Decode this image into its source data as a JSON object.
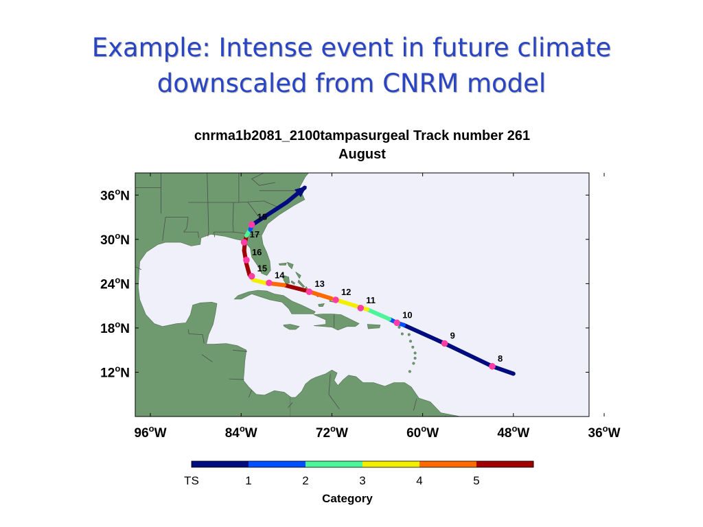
{
  "slide": {
    "title_line1": "Example: Intense event in future climate",
    "title_line2": "downscaled from CNRM model"
  },
  "plot": {
    "title_line1": "cnrma1b2081_2100tampasurgeal Track number 261",
    "title_line2": "August"
  },
  "map": {
    "lon_range": [
      -98,
      -38
    ],
    "lat_range": [
      6,
      39
    ],
    "ocean_color": "#f0f0fb",
    "land_color": "#6f9a6f",
    "lat_ticks": [
      {
        "value": 36,
        "deg": "36",
        "hemi": "N"
      },
      {
        "value": 30,
        "deg": "30",
        "hemi": "N"
      },
      {
        "value": 24,
        "deg": "24",
        "hemi": "N"
      },
      {
        "value": 18,
        "deg": "18",
        "hemi": "N"
      },
      {
        "value": 12,
        "deg": "12",
        "hemi": "N"
      }
    ],
    "lon_ticks": [
      {
        "value": -96,
        "deg": "96",
        "hemi": "W"
      },
      {
        "value": -84,
        "deg": "84",
        "hemi": "W"
      },
      {
        "value": -72,
        "deg": "72",
        "hemi": "W"
      },
      {
        "value": -60,
        "deg": "60",
        "hemi": "W"
      },
      {
        "value": -48,
        "deg": "48",
        "hemi": "W"
      },
      {
        "value": -36,
        "deg": "36",
        "hemi": "W"
      }
    ]
  },
  "track": {
    "points": [
      {
        "lon": -48.0,
        "lat": 11.8,
        "cat": 0
      },
      {
        "lon": -50.8,
        "lat": 12.8,
        "cat": 0
      },
      {
        "lon": -57.1,
        "lat": 15.9,
        "cat": 0
      },
      {
        "lon": -62.5,
        "lat": 18.4,
        "cat": 1
      },
      {
        "lon": -63.4,
        "lat": 18.7,
        "cat": 1
      },
      {
        "lon": -64.4,
        "lat": 19.2,
        "cat": 2
      },
      {
        "lon": -67.3,
        "lat": 20.5,
        "cat": 3
      },
      {
        "lon": -72.1,
        "lat": 22.0,
        "cat": 4
      },
      {
        "lon": -75.6,
        "lat": 23.1,
        "cat": 5
      },
      {
        "lon": -78.3,
        "lat": 23.8,
        "cat": 4
      },
      {
        "lon": -80.8,
        "lat": 24.1,
        "cat": 3
      },
      {
        "lon": -82.4,
        "lat": 24.5,
        "cat": 3
      },
      {
        "lon": -82.9,
        "lat": 25.2,
        "cat": 5
      },
      {
        "lon": -83.3,
        "lat": 26.7,
        "cat": 5
      },
      {
        "lon": -83.6,
        "lat": 28.5,
        "cat": 5
      },
      {
        "lon": -83.5,
        "lat": 29.5,
        "cat": 5
      },
      {
        "lon": -83.3,
        "lat": 30.5,
        "cat": 2
      },
      {
        "lon": -82.8,
        "lat": 31.3,
        "cat": 1
      },
      {
        "lon": -82.5,
        "lat": 32.0,
        "cat": 0
      },
      {
        "lon": -78.0,
        "lat": 35.0,
        "cat": 0
      },
      {
        "lon": -75.6,
        "lat": 37.0,
        "cat": 0
      }
    ],
    "day_markers": [
      {
        "label": "8",
        "lon": -50.8,
        "lat": 12.8
      },
      {
        "label": "9",
        "lon": -57.1,
        "lat": 15.9
      },
      {
        "label": "10",
        "lon": -63.4,
        "lat": 18.7
      },
      {
        "label": "11",
        "lon": -68.2,
        "lat": 20.7
      },
      {
        "label": "12",
        "lon": -71.5,
        "lat": 21.8
      },
      {
        "label": "13",
        "lon": -75.0,
        "lat": 22.9
      },
      {
        "label": "14",
        "lon": -80.3,
        "lat": 24.1
      },
      {
        "label": "15",
        "lon": -82.6,
        "lat": 25.0
      },
      {
        "label": "16",
        "lon": -83.3,
        "lat": 27.2
      },
      {
        "label": "17",
        "lon": -83.6,
        "lat": 29.6
      },
      {
        "label": "18",
        "lon": -82.6,
        "lat": 32.0
      }
    ],
    "marker_color": "#ff3ea5"
  },
  "colorbar": {
    "title": "Category",
    "labels": [
      "TS",
      "1",
      "2",
      "3",
      "4",
      "5"
    ],
    "colors": [
      "#000c7e",
      "#0050ff",
      "#4cf59a",
      "#f2f000",
      "#ff6a00",
      "#a00000"
    ]
  }
}
